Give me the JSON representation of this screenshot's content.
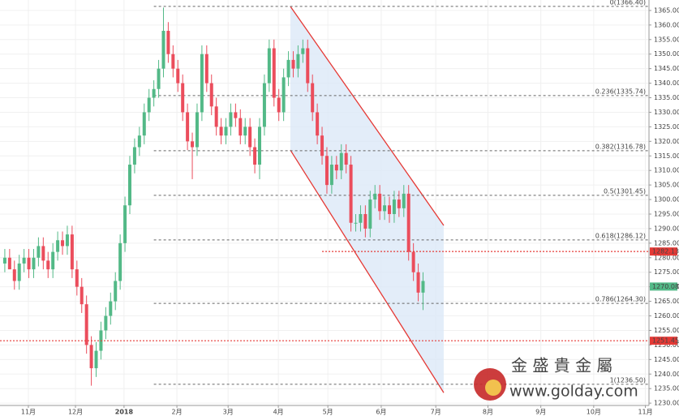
{
  "chart_data": {
    "type": "candlestick",
    "x": [
      2,
      4,
      6,
      8,
      10,
      12,
      14,
      16,
      18,
      20,
      22,
      24,
      26,
      28,
      30,
      32,
      34,
      36,
      38,
      40,
      42,
      44,
      46,
      48,
      50,
      52,
      54,
      56,
      58,
      60,
      62,
      64,
      66,
      68,
      70,
      72,
      74,
      76,
      78,
      80,
      82,
      84,
      86,
      88,
      90,
      92,
      94,
      96,
      98,
      100,
      102,
      104,
      106,
      108,
      110,
      112,
      114,
      116,
      118,
      120,
      122,
      124,
      126,
      128,
      130,
      132,
      134,
      136,
      138,
      140,
      142,
      144,
      146,
      148,
      150,
      152,
      154,
      156,
      158,
      160,
      162,
      164,
      166,
      168,
      170,
      172,
      174,
      176
    ],
    "open": [
      1278,
      1280,
      1276,
      1272,
      1278,
      1280,
      1276,
      1280,
      1284,
      1279,
      1276,
      1282,
      1286,
      1284,
      1288,
      1276,
      1270,
      1264,
      1250,
      1242,
      1248,
      1255,
      1260,
      1265,
      1272,
      1285,
      1298,
      1312,
      1318,
      1322,
      1330,
      1335,
      1338,
      1345,
      1358,
      1350,
      1345,
      1340,
      1330,
      1320,
      1318,
      1330,
      1350,
      1340,
      1332,
      1325,
      1322,
      1325,
      1330,
      1328,
      1322,
      1325,
      1318,
      1312,
      1325,
      1340,
      1352,
      1335,
      1330,
      1342,
      1348,
      1345,
      1350,
      1352,
      1340,
      1330,
      1322,
      1315,
      1305,
      1312,
      1310,
      1316,
      1312,
      1292,
      1292,
      1295,
      1290,
      1300,
      1302,
      1296,
      1298,
      1295,
      1300,
      1297,
      1302,
      1282,
      1275,
      1268
    ],
    "high": [
      1283,
      1283,
      1279,
      1281,
      1283,
      1283,
      1283,
      1287,
      1287,
      1282,
      1285,
      1289,
      1289,
      1291,
      1291,
      1279,
      1273,
      1267,
      1253,
      1251,
      1258,
      1263,
      1268,
      1275,
      1288,
      1301,
      1315,
      1321,
      1325,
      1333,
      1338,
      1341,
      1348,
      1366,
      1361,
      1353,
      1348,
      1343,
      1333,
      1323,
      1333,
      1353,
      1353,
      1343,
      1335,
      1328,
      1328,
      1333,
      1333,
      1331,
      1328,
      1328,
      1321,
      1328,
      1343,
      1355,
      1355,
      1338,
      1345,
      1351,
      1351,
      1353,
      1355,
      1355,
      1343,
      1333,
      1325,
      1318,
      1315,
      1315,
      1319,
      1319,
      1315,
      1295,
      1298,
      1298,
      1303,
      1305,
      1305,
      1301,
      1301,
      1303,
      1303,
      1305,
      1305,
      1285,
      1278,
      1275
    ],
    "low": [
      1275,
      1277,
      1269,
      1269,
      1275,
      1273,
      1273,
      1277,
      1276,
      1273,
      1273,
      1279,
      1281,
      1281,
      1273,
      1267,
      1261,
      1247,
      1236,
      1239,
      1245,
      1252,
      1257,
      1262,
      1269,
      1282,
      1295,
      1309,
      1315,
      1319,
      1327,
      1332,
      1335,
      1342,
      1347,
      1342,
      1337,
      1327,
      1317,
      1307,
      1315,
      1327,
      1337,
      1329,
      1322,
      1319,
      1319,
      1322,
      1325,
      1319,
      1319,
      1315,
      1309,
      1307,
      1322,
      1337,
      1332,
      1327,
      1327,
      1339,
      1342,
      1342,
      1347,
      1337,
      1327,
      1319,
      1312,
      1302,
      1302,
      1307,
      1307,
      1309,
      1289,
      1289,
      1289,
      1287,
      1287,
      1297,
      1293,
      1293,
      1292,
      1292,
      1294,
      1294,
      1279,
      1272,
      1265,
      1262
    ],
    "close": [
      1280,
      1276,
      1272,
      1278,
      1280,
      1276,
      1280,
      1284,
      1279,
      1276,
      1282,
      1286,
      1284,
      1288,
      1276,
      1270,
      1264,
      1250,
      1242,
      1248,
      1255,
      1260,
      1265,
      1272,
      1285,
      1298,
      1312,
      1318,
      1322,
      1330,
      1335,
      1338,
      1345,
      1358,
      1350,
      1345,
      1340,
      1330,
      1320,
      1318,
      1330,
      1350,
      1340,
      1332,
      1325,
      1322,
      1325,
      1330,
      1328,
      1322,
      1325,
      1318,
      1312,
      1325,
      1340,
      1352,
      1335,
      1330,
      1342,
      1348,
      1345,
      1350,
      1352,
      1340,
      1330,
      1322,
      1315,
      1305,
      1312,
      1310,
      1316,
      1312,
      1292,
      1292,
      1295,
      1290,
      1300,
      1302,
      1296,
      1298,
      1295,
      1300,
      1297,
      1302,
      1282,
      1275,
      1268,
      1272
    ],
    "up_color": "#53b987",
    "down_color": "#eb4d5c",
    "xlim": [
      0,
      270
    ],
    "xticks": [
      {
        "value": 11.8,
        "label": "11月"
      },
      {
        "value": 31.4,
        "label": "12月"
      },
      {
        "value": 51.6,
        "label": "2018"
      },
      {
        "value": 73.6,
        "label": "2月"
      },
      {
        "value": 94.9,
        "label": "3月"
      },
      {
        "value": 115.8,
        "label": "4月"
      },
      {
        "value": 136.4,
        "label": "5月"
      },
      {
        "value": 158.6,
        "label": "6月"
      },
      {
        "value": 181.3,
        "label": "7月"
      },
      {
        "value": 203,
        "label": "8月"
      },
      {
        "value": 225,
        "label": "9月"
      },
      {
        "value": 247,
        "label": "10月"
      },
      {
        "value": 268.5,
        "label": "11月"
      }
    ],
    "ylim": [
      1229.2,
      1368.6
    ],
    "yticks": [
      {
        "value": 1230,
        "label": "1230.00"
      },
      {
        "value": 1235,
        "label": "1235.00"
      },
      {
        "value": 1240,
        "label": "1240.00"
      },
      {
        "value": 1245,
        "label": "1245.00"
      },
      {
        "value": 1250,
        "label": "1250.00"
      },
      {
        "value": 1255,
        "label": "1255.00"
      },
      {
        "value": 1260,
        "label": "1260.00"
      },
      {
        "value": 1265,
        "label": "1265.00"
      },
      {
        "value": 1270,
        "label": "1270.00"
      },
      {
        "value": 1275,
        "label": "1275.00"
      },
      {
        "value": 1280,
        "label": "1280.00"
      },
      {
        "value": 1285,
        "label": "1285.00"
      },
      {
        "value": 1290,
        "label": "1290.00"
      },
      {
        "value": 1295,
        "label": "1295.00"
      },
      {
        "value": 1300,
        "label": "1300.00"
      },
      {
        "value": 1305,
        "label": "1305.00"
      },
      {
        "value": 1310,
        "label": "1310.00"
      },
      {
        "value": 1315,
        "label": "1315.00"
      },
      {
        "value": 1320,
        "label": "1320.00"
      },
      {
        "value": 1325,
        "label": "1325.00"
      },
      {
        "value": 1330,
        "label": "1330.00"
      },
      {
        "value": 1335,
        "label": "1335.00"
      },
      {
        "value": 1340,
        "label": "1340.00"
      },
      {
        "value": 1345,
        "label": "1345.00"
      },
      {
        "value": 1350,
        "label": "1350.00"
      },
      {
        "value": 1355,
        "label": "1355.00"
      },
      {
        "value": 1360,
        "label": "1360.00"
      },
      {
        "value": 1365,
        "label": "1365.00"
      }
    ],
    "grid": true,
    "fib_start_x": 64,
    "fib_levels": [
      {
        "value": 1366.4,
        "label": "0(1366.40)"
      },
      {
        "value": 1335.74,
        "label": "0.236(1335.74)"
      },
      {
        "value": 1316.78,
        "label": "0.382(1316.78)"
      },
      {
        "value": 1301.45,
        "label": "0.5(1301.45)"
      },
      {
        "value": 1286.12,
        "label": "0.618(1286.12)"
      },
      {
        "value": 1264.3,
        "label": "0.786(1264.30)"
      },
      {
        "value": 1236.5,
        "label": "1(1236.50)"
      }
    ],
    "hlines": [
      {
        "value": 1282.13,
        "start_x": 134,
        "color": "#e53935"
      },
      {
        "value": 1251.45,
        "start_x": 0,
        "color": "#e53935"
      }
    ],
    "last_price": {
      "value": 1270.08,
      "color": "#53b987"
    },
    "channel": {
      "color": "#e53935",
      "fill": "#dce9f7",
      "upper": {
        "x": [
          120.8,
          184.6
        ],
        "y": [
          1366.4,
          1291.1
        ]
      },
      "lower": {
        "x": [
          120.8,
          184.6
        ],
        "y": [
          1317.0,
          1233.6
        ]
      }
    },
    "watermark": {
      "title": "金 盛 貴 金 屬",
      "url": "www.golday.com"
    }
  }
}
